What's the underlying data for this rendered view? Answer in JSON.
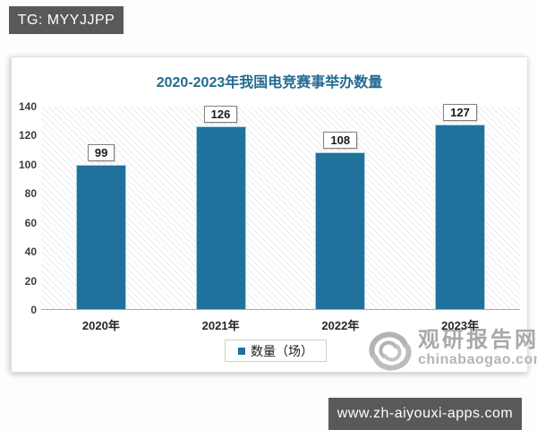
{
  "page": {
    "top_badge_label": "TG: MYYJJPP",
    "bottom_badge_label": "www.zh-aiyouxi-apps.com"
  },
  "chart_data": {
    "type": "bar",
    "title": "2020-2023年我国电竞赛事举办数量",
    "categories": [
      "2020年",
      "2021年",
      "2022年",
      "2023年"
    ],
    "values": [
      99,
      126,
      108,
      127
    ],
    "series_name": "数量（场）",
    "xlabel": "",
    "ylabel": "",
    "ylim": [
      0,
      140
    ],
    "yticks": [
      0,
      20,
      40,
      60,
      80,
      100,
      120,
      140
    ],
    "grid": false,
    "data_labels": true,
    "legend_position": "bottom",
    "bar_color": "#21719d",
    "title_color": "#226b92",
    "plot_hatch": true
  },
  "watermark": {
    "name": "观研报告网",
    "domain": "chinabaogao.com"
  }
}
